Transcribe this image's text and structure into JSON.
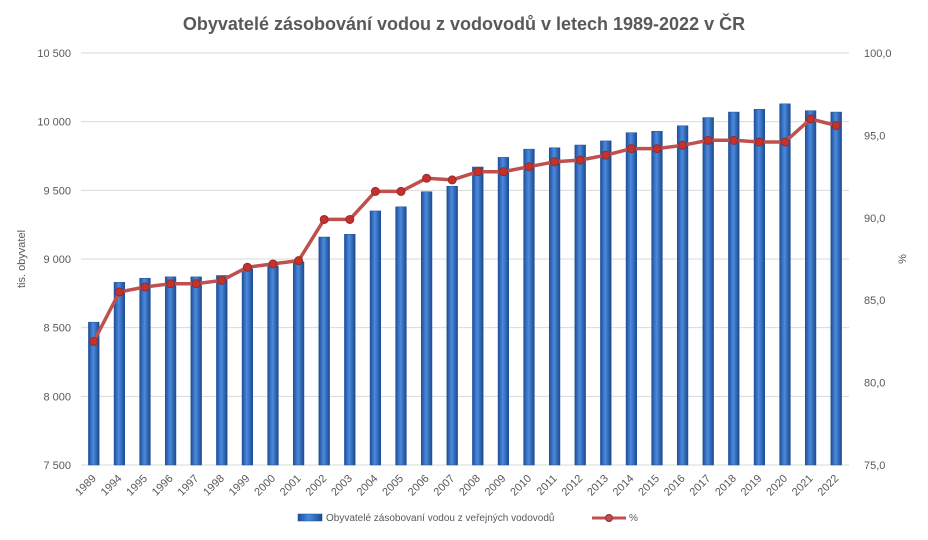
{
  "chart_data": {
    "type": "bar",
    "title": "Obyvatelé zásobování vodou z vodovodů v letech 1989-2022 v ČR",
    "categories": [
      "1989",
      "1994",
      "1995",
      "1996",
      "1997",
      "1998",
      "1999",
      "2000",
      "2001",
      "2002",
      "2003",
      "2004",
      "2005",
      "2006",
      "2007",
      "2008",
      "2009",
      "2010",
      "2011",
      "2012",
      "2013",
      "2014",
      "2015",
      "2016",
      "2017",
      "2018",
      "2019",
      "2020",
      "2021",
      "2022"
    ],
    "series": [
      {
        "name": "Obyvatelé zásobovaní vodou z veřejných vodovodů",
        "type": "bar",
        "axis": "left",
        "color": "#2e6bc4",
        "values": [
          8540,
          8830,
          8860,
          8870,
          8870,
          8880,
          8930,
          8950,
          8980,
          9160,
          9180,
          9350,
          9380,
          9490,
          9530,
          9670,
          9740,
          9800,
          9810,
          9830,
          9860,
          9920,
          9930,
          9970,
          10030,
          10070,
          10090,
          10130,
          10080,
          10070
        ]
      },
      {
        "name": "%",
        "type": "line",
        "axis": "right",
        "color": "#c0504d",
        "values": [
          82.5,
          85.5,
          85.8,
          86.0,
          86.0,
          86.2,
          87.0,
          87.2,
          87.4,
          89.9,
          89.9,
          91.6,
          91.6,
          92.4,
          92.3,
          92.8,
          92.8,
          93.1,
          93.4,
          93.5,
          93.8,
          94.2,
          94.2,
          94.4,
          94.7,
          94.7,
          94.6,
          94.6,
          96.0,
          95.6
        ]
      }
    ],
    "ylabel": "tis. obyvatel",
    "ylim": [
      7500,
      10500
    ],
    "yticks": [
      "7 500",
      "8 000",
      "8 500",
      "9 000",
      "9 500",
      "10 000",
      "10 500"
    ],
    "y2label": "%",
    "y2lim": [
      75.0,
      100.0
    ],
    "y2ticks": [
      "75,0",
      "80,0",
      "85,0",
      "90,0",
      "95,0",
      "100,0"
    ],
    "grid": true,
    "legend": "bottom"
  }
}
